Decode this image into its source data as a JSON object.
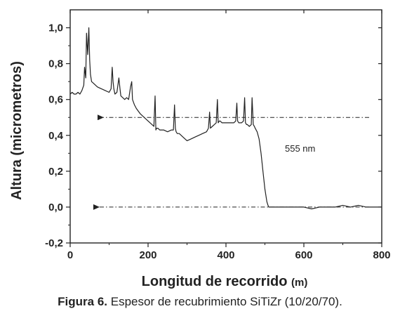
{
  "chart_data": {
    "type": "line",
    "xlabel": "Longitud de recorrido",
    "xlabel_unit": "(m)",
    "ylabel": "Altura (micrometros)",
    "xlim": [
      0,
      800
    ],
    "ylim": [
      -0.2,
      1.1
    ],
    "x_ticks": [
      0,
      200,
      400,
      600,
      800
    ],
    "x_tick_labels": [
      "0",
      "200",
      "400",
      "600",
      "800"
    ],
    "y_ticks": [
      -0.2,
      0.0,
      0.2,
      0.4,
      0.6,
      0.8,
      1.0
    ],
    "y_tick_labels": [
      "-0,2",
      "0,0",
      "0,2",
      "0,4",
      "0,6",
      "0,8",
      "1,0"
    ],
    "grid": false,
    "annotation": "555 nm",
    "reference_levels": [
      0.5,
      0.0
    ],
    "series": [
      {
        "x": [
          0,
          5,
          10,
          15,
          20,
          25,
          30,
          35,
          37,
          40,
          42,
          45,
          48,
          50,
          52,
          55,
          60,
          70,
          80,
          90,
          100,
          105,
          108,
          110,
          112,
          115,
          120,
          125,
          128,
          130,
          135,
          140,
          145,
          150,
          155,
          158,
          160,
          165,
          170,
          180,
          190,
          200,
          210,
          215,
          218,
          220,
          222,
          225,
          230,
          240,
          250,
          260,
          265,
          268,
          270,
          272,
          275,
          280,
          290,
          300,
          310,
          320,
          330,
          340,
          350,
          355,
          358,
          360,
          365,
          370,
          375,
          378,
          380,
          383,
          385,
          390,
          400,
          410,
          420,
          425,
          428,
          430,
          433,
          435,
          440,
          445,
          448,
          450,
          453,
          455,
          460,
          465,
          467,
          470,
          473,
          475,
          480,
          485,
          490,
          495,
          500,
          505,
          508,
          510,
          520,
          540,
          560,
          580,
          600,
          620,
          640,
          660,
          680,
          700,
          720,
          740,
          760,
          780,
          800
        ],
        "y": [
          0.63,
          0.64,
          0.63,
          0.63,
          0.64,
          0.63,
          0.65,
          0.68,
          0.78,
          0.72,
          0.97,
          0.85,
          1.0,
          0.82,
          0.74,
          0.7,
          0.69,
          0.67,
          0.66,
          0.65,
          0.64,
          0.66,
          0.78,
          0.7,
          0.66,
          0.63,
          0.64,
          0.72,
          0.66,
          0.62,
          0.61,
          0.6,
          0.61,
          0.6,
          0.67,
          0.7,
          0.6,
          0.57,
          0.55,
          0.52,
          0.5,
          0.48,
          0.46,
          0.45,
          0.62,
          0.43,
          0.44,
          0.44,
          0.43,
          0.43,
          0.42,
          0.43,
          0.43,
          0.57,
          0.44,
          0.42,
          0.41,
          0.41,
          0.39,
          0.37,
          0.38,
          0.39,
          0.4,
          0.41,
          0.42,
          0.44,
          0.53,
          0.44,
          0.45,
          0.46,
          0.47,
          0.6,
          0.47,
          0.48,
          0.48,
          0.47,
          0.47,
          0.47,
          0.47,
          0.48,
          0.58,
          0.48,
          0.47,
          0.47,
          0.47,
          0.48,
          0.61,
          0.47,
          0.46,
          0.46,
          0.45,
          0.46,
          0.61,
          0.46,
          0.45,
          0.44,
          0.42,
          0.38,
          0.3,
          0.2,
          0.1,
          0.03,
          0.01,
          0.0,
          0.0,
          0.0,
          0.0,
          0.0,
          0.0,
          -0.01,
          0.0,
          0.0,
          0.0,
          0.01,
          0.0,
          0.01,
          0.0,
          0.0,
          0.0
        ]
      }
    ]
  },
  "caption": {
    "label": "Figura 6.",
    "text": " Espesor de recubrimiento SiTiZr (10/20/70)."
  }
}
